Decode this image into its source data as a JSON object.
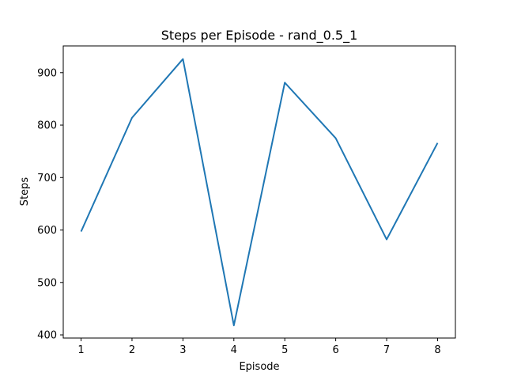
{
  "chart_data": {
    "type": "line",
    "title": "Steps per Episode - rand_0.5_1",
    "xlabel": "Episode",
    "ylabel": "Steps",
    "xlim": [
      0.65,
      8.35
    ],
    "ylim": [
      394,
      951
    ],
    "x_ticks": [
      1,
      2,
      3,
      4,
      5,
      6,
      7,
      8
    ],
    "y_ticks": [
      400,
      500,
      600,
      700,
      800,
      900
    ],
    "grid": false,
    "series": [
      {
        "x": [
          1,
          2,
          3,
          4,
          5,
          6,
          7,
          8
        ],
        "values": [
          597,
          814,
          926,
          418,
          881,
          775,
          582,
          766
        ],
        "color": "#1f77b4"
      }
    ]
  }
}
